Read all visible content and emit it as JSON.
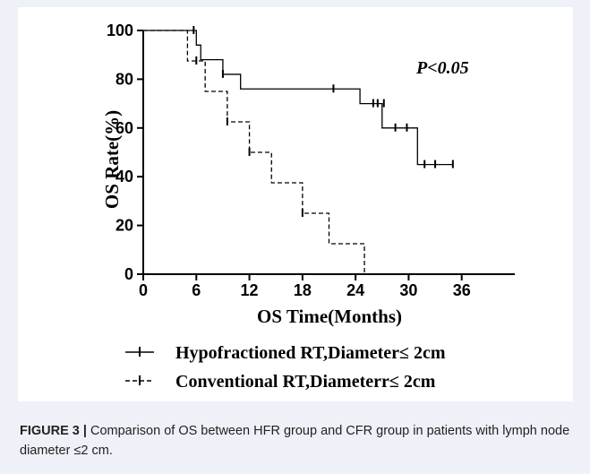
{
  "chart_data": {
    "type": "line",
    "subtype": "kaplan-meier step curves with censor ticks",
    "xlabel": "OS Time(Months)",
    "ylabel": "OS Rate(%)",
    "xlim": [
      0,
      42
    ],
    "ylim": [
      0,
      100
    ],
    "xticks": [
      "0",
      "6",
      "12",
      "18",
      "24",
      "30",
      "36"
    ],
    "yticks": [
      "0",
      "20",
      "40",
      "60",
      "80",
      "100"
    ],
    "annotation": "P<0.05",
    "legend_position": "bottom",
    "grid": false,
    "series": [
      {
        "name": "Hypofractioned RT,Diameter≤ 2cm",
        "line_style": "solid",
        "color": "#000000",
        "steps": [
          [
            0,
            100
          ],
          [
            6,
            94
          ],
          [
            6.5,
            88
          ],
          [
            9,
            82
          ],
          [
            11,
            76
          ],
          [
            24.5,
            70
          ],
          [
            27,
            60
          ],
          [
            31,
            45
          ],
          [
            35,
            45
          ]
        ],
        "censored": [
          [
            5.7,
            100
          ],
          [
            9,
            82
          ],
          [
            21.5,
            76
          ],
          [
            26,
            70
          ],
          [
            26.5,
            70
          ],
          [
            27.2,
            70
          ],
          [
            28.5,
            60
          ],
          [
            29.8,
            60
          ],
          [
            31.8,
            45
          ],
          [
            33,
            45
          ],
          [
            35,
            45
          ]
        ]
      },
      {
        "name": "Conventional RT,Diameterr≤ 2cm",
        "line_style": "dashed",
        "color": "#000000",
        "steps": [
          [
            0,
            100
          ],
          [
            5,
            87.5
          ],
          [
            7,
            75
          ],
          [
            9.5,
            62.5
          ],
          [
            12,
            50
          ],
          [
            14.5,
            37.5
          ],
          [
            18,
            25
          ],
          [
            21,
            12.5
          ],
          [
            25,
            0
          ]
        ],
        "censored": [
          [
            6,
            87.5
          ],
          [
            9.5,
            62.5
          ],
          [
            12,
            50
          ],
          [
            18,
            25
          ]
        ]
      }
    ]
  },
  "caption": {
    "label": "FIGURE 3 |",
    "text": " Comparison of OS between HFR group and CFR group in patients with lymph node diameter ≤2 cm."
  }
}
